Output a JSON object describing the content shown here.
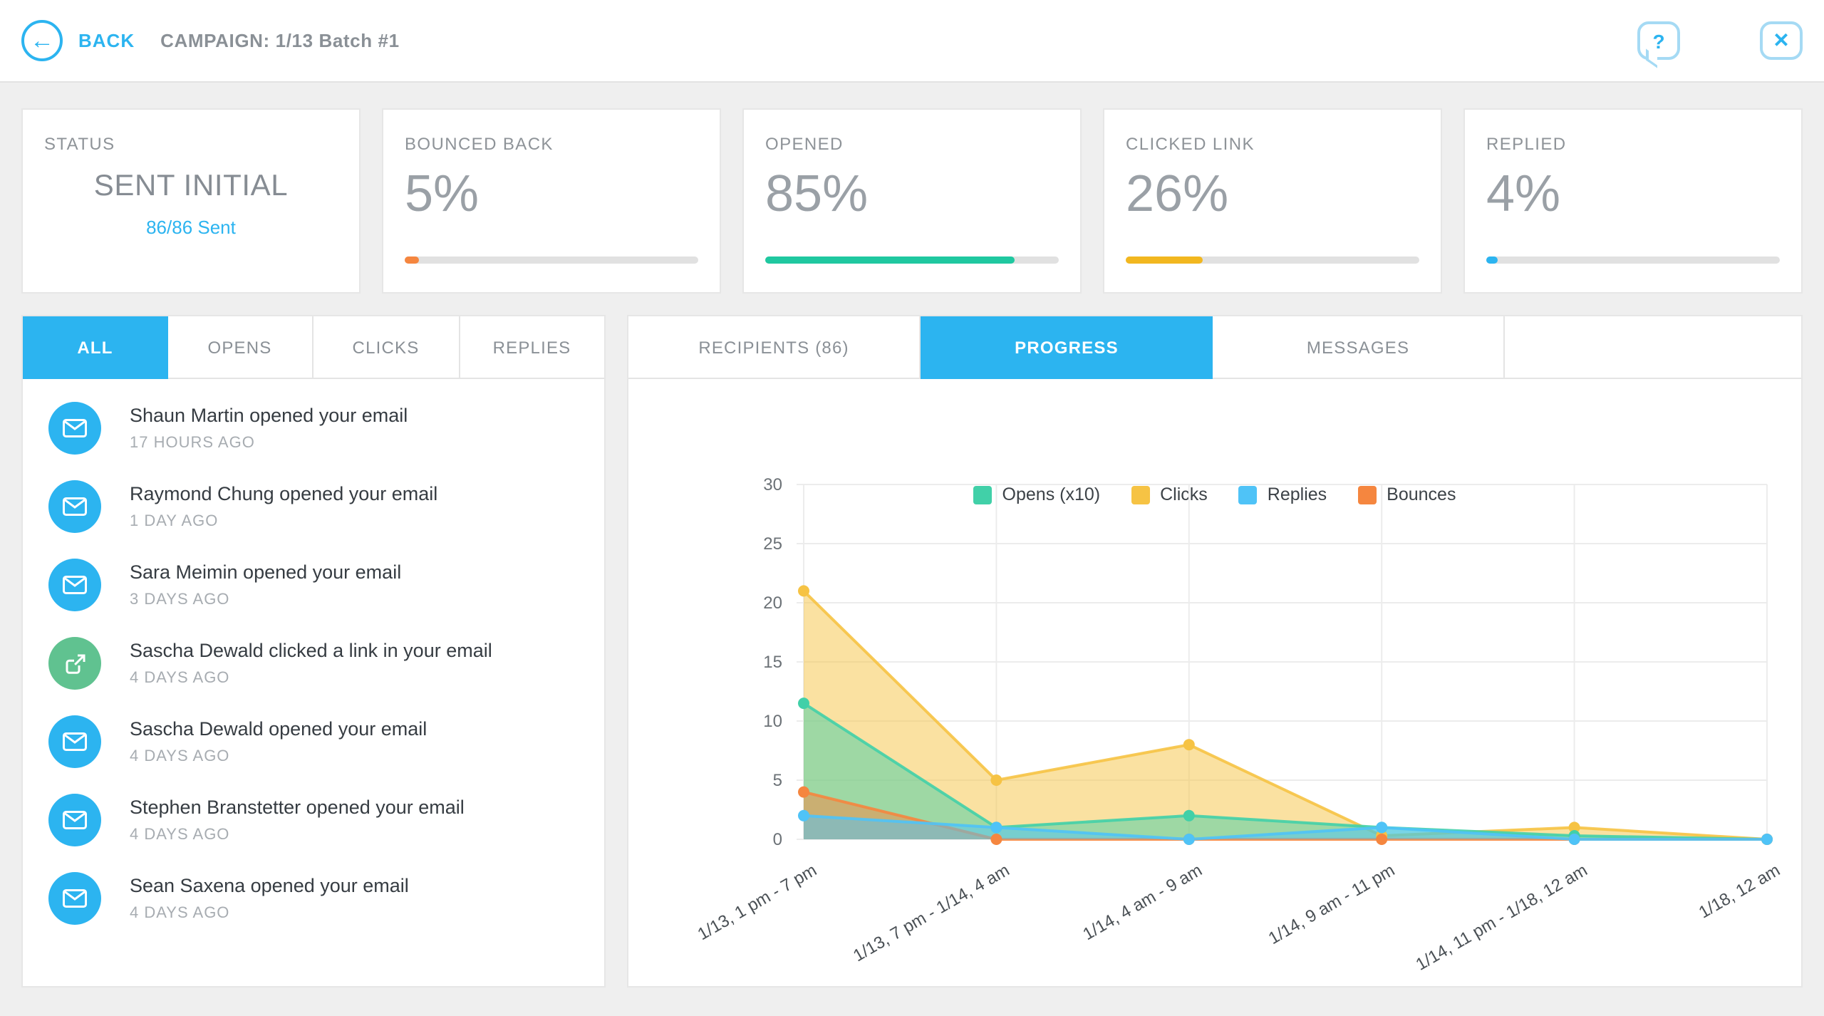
{
  "header": {
    "back_label": "BACK",
    "campaign_label": "CAMPAIGN: 1/13 Batch #1",
    "help_label": "?",
    "close_label": "✕",
    "accent_color": "#2cb4f0"
  },
  "stats": {
    "cards": [
      {
        "label": "STATUS",
        "value": "SENT INITIAL",
        "sub": "86/86 Sent"
      },
      {
        "label": "BOUNCED BACK",
        "value": "5%",
        "percent": 5,
        "color": "#f5863f"
      },
      {
        "label": "OPENED",
        "value": "85%",
        "percent": 85,
        "color": "#1fc8a0"
      },
      {
        "label": "CLICKED LINK",
        "value": "26%",
        "percent": 26,
        "color": "#f2b71f"
      },
      {
        "label": "REPLIED",
        "value": "4%",
        "percent": 4,
        "color": "#2cb4f0"
      }
    ]
  },
  "activity": {
    "tabs": [
      {
        "label": "ALL",
        "active": true
      },
      {
        "label": "OPENS",
        "active": false
      },
      {
        "label": "CLICKS",
        "active": false
      },
      {
        "label": "REPLIES",
        "active": false
      }
    ],
    "items": [
      {
        "text": "Shaun Martin opened your email",
        "time": "17 HOURS AGO",
        "type": "open"
      },
      {
        "text": "Raymond Chung opened your email",
        "time": "1 DAY AGO",
        "type": "open"
      },
      {
        "text": "Sara Meimin opened your email",
        "time": "3 DAYS AGO",
        "type": "open"
      },
      {
        "text": "Sascha Dewald clicked a link in your email",
        "time": "4 DAYS AGO",
        "type": "click"
      },
      {
        "text": "Sascha Dewald opened your email",
        "time": "4 DAYS AGO",
        "type": "open"
      },
      {
        "text": "Stephen Branstetter opened your email",
        "time": "4 DAYS AGO",
        "type": "open"
      },
      {
        "text": "Sean Saxena opened your email",
        "time": "4 DAYS AGO",
        "type": "open"
      }
    ]
  },
  "detail": {
    "tabs": [
      {
        "label": "RECIPIENTS (86)",
        "active": false
      },
      {
        "label": "PROGRESS",
        "active": true
      },
      {
        "label": "MESSAGES",
        "active": false
      }
    ]
  },
  "chart_data": {
    "type": "area",
    "title": "",
    "x": [
      "1/13, 1 pm - 7 pm",
      "1/13, 7 pm - 1/14, 4 am",
      "1/14, 4 am - 9 am",
      "1/14, 9 am - 11 pm",
      "1/14, 11 pm - 1/18, 12 am",
      "1/18, 12 am"
    ],
    "series": [
      {
        "name": "Opens (x10)",
        "color": "#41d0a8",
        "values": [
          11.5,
          1,
          2,
          1,
          0.3,
          0
        ]
      },
      {
        "name": "Clicks",
        "color": "#f6c344",
        "values": [
          21,
          5,
          8,
          0.3,
          1,
          0
        ]
      },
      {
        "name": "Replies",
        "color": "#4fc3f7",
        "values": [
          2,
          1,
          0,
          1,
          0,
          0
        ]
      },
      {
        "name": "Bounces",
        "color": "#f5863f",
        "values": [
          4,
          0,
          0,
          0,
          0,
          0
        ]
      }
    ],
    "ylim": [
      0,
      30
    ],
    "yticks": [
      0,
      5,
      10,
      15,
      20,
      25,
      30
    ],
    "grid": true,
    "legend_position": "top"
  }
}
